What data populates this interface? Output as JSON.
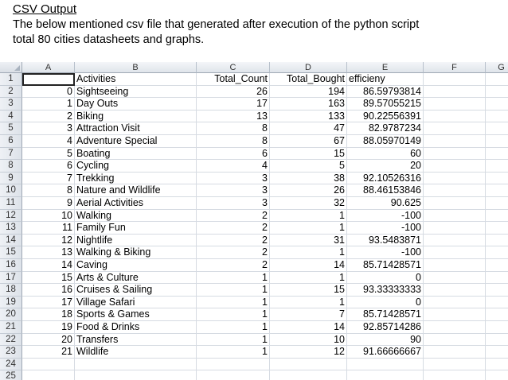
{
  "heading": "CSV Output",
  "description": "The below mentioned csv file that generated after execution of the python script total 80 cities datasheets and graphs.",
  "columns": [
    "A",
    "B",
    "C",
    "D",
    "E",
    "F",
    "G"
  ],
  "row_numbers": [
    "1",
    "2",
    "3",
    "4",
    "5",
    "6",
    "7",
    "8",
    "9",
    "10",
    "11",
    "12",
    "13",
    "14",
    "15",
    "16",
    "17",
    "18",
    "19",
    "20",
    "21",
    "22",
    "23",
    "24",
    "25"
  ],
  "header_row": {
    "a": "",
    "b": "Activities",
    "c": "Total_Count",
    "d": "Total_Bought",
    "e": "efficieny"
  },
  "rows": [
    {
      "a": "0",
      "b": "Sightseeing",
      "c": "26",
      "d": "194",
      "e": "86.59793814"
    },
    {
      "a": "1",
      "b": "Day Outs",
      "c": "17",
      "d": "163",
      "e": "89.57055215"
    },
    {
      "a": "2",
      "b": "Biking",
      "c": "13",
      "d": "133",
      "e": "90.22556391"
    },
    {
      "a": "3",
      "b": "Attraction Visit",
      "c": "8",
      "d": "47",
      "e": "82.9787234"
    },
    {
      "a": "4",
      "b": "Adventure Special",
      "c": "8",
      "d": "67",
      "e": "88.05970149"
    },
    {
      "a": "5",
      "b": "Boating",
      "c": "6",
      "d": "15",
      "e": "60"
    },
    {
      "a": "6",
      "b": "Cycling",
      "c": "4",
      "d": "5",
      "e": "20"
    },
    {
      "a": "7",
      "b": "Trekking",
      "c": "3",
      "d": "38",
      "e": "92.10526316"
    },
    {
      "a": "8",
      "b": "Nature and Wildlife",
      "c": "3",
      "d": "26",
      "e": "88.46153846"
    },
    {
      "a": "9",
      "b": "Aerial Activities",
      "c": "3",
      "d": "32",
      "e": "90.625"
    },
    {
      "a": "10",
      "b": "Walking",
      "c": "2",
      "d": "1",
      "e": "-100"
    },
    {
      "a": "11",
      "b": "Family Fun",
      "c": "2",
      "d": "1",
      "e": "-100"
    },
    {
      "a": "12",
      "b": "Nightlife",
      "c": "2",
      "d": "31",
      "e": "93.5483871"
    },
    {
      "a": "13",
      "b": "Walking & Biking",
      "c": "2",
      "d": "1",
      "e": "-100"
    },
    {
      "a": "14",
      "b": "Caving",
      "c": "2",
      "d": "14",
      "e": "85.71428571"
    },
    {
      "a": "15",
      "b": "Arts & Culture",
      "c": "1",
      "d": "1",
      "e": "0"
    },
    {
      "a": "16",
      "b": "Cruises & Sailing",
      "c": "1",
      "d": "15",
      "e": "93.33333333"
    },
    {
      "a": "17",
      "b": "Village Safari",
      "c": "1",
      "d": "1",
      "e": "0"
    },
    {
      "a": "18",
      "b": "Sports & Games",
      "c": "1",
      "d": "7",
      "e": "85.71428571"
    },
    {
      "a": "19",
      "b": "Food & Drinks",
      "c": "1",
      "d": "14",
      "e": "92.85714286"
    },
    {
      "a": "20",
      "b": "Transfers",
      "c": "1",
      "d": "10",
      "e": "90"
    },
    {
      "a": "21",
      "b": "Wildlife",
      "c": "1",
      "d": "12",
      "e": "91.66666667"
    }
  ]
}
